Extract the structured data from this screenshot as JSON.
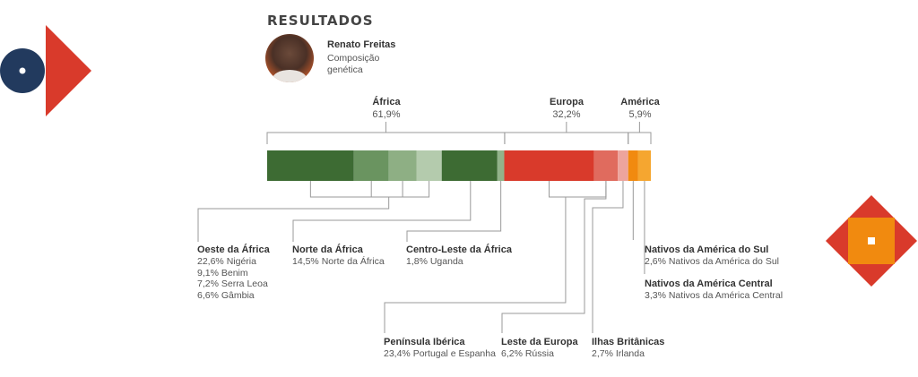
{
  "header": {
    "title": "RESULTADOS",
    "person_name": "Renato Freitas",
    "person_subtitle": "Composição genética"
  },
  "colors": {
    "africa": [
      "#3d6b33",
      "#6a9460",
      "#8eaf84",
      "#b4cbad",
      "#3d6b33",
      "#92b38a"
    ],
    "europe": [
      "#d93a2b",
      "#e06b5e",
      "#eda49d"
    ],
    "america": [
      "#f18a0f",
      "#f5a630"
    ],
    "decor_navy": "#223a5e",
    "decor_red": "#d93a2b",
    "decor_orange": "#f18a0f"
  },
  "chart_data": {
    "type": "bar",
    "orientation": "horizontal-stacked",
    "unit": "%",
    "groups": [
      {
        "name": "África",
        "pct_label": "61,9%",
        "value": 61.9
      },
      {
        "name": "Europa",
        "pct_label": "32,2%",
        "value": 32.2
      },
      {
        "name": "América",
        "pct_label": "5,9%",
        "value": 5.9
      }
    ],
    "segments": [
      {
        "group": "África",
        "country": "Nigéria",
        "value": 22.6
      },
      {
        "group": "África",
        "country": "Benim",
        "value": 9.1
      },
      {
        "group": "África",
        "country": "Serra Leoa",
        "value": 7.2
      },
      {
        "group": "África",
        "country": "Gâmbia",
        "value": 6.6
      },
      {
        "group": "África",
        "country": "Norte da África",
        "value": 14.5
      },
      {
        "group": "África",
        "country": "Uganda",
        "value": 1.8
      },
      {
        "group": "Europa",
        "country": "Portugal e Espanha",
        "value": 23.4
      },
      {
        "group": "Europa",
        "country": "Rússia",
        "value": 6.2
      },
      {
        "group": "Europa",
        "country": "Irlanda",
        "value": 2.7
      },
      {
        "group": "América",
        "country": "Nativos da América do Sul",
        "value": 2.6
      },
      {
        "group": "América",
        "country": "Nativos da América Central",
        "value": 3.3
      }
    ],
    "regions": [
      {
        "title": "Oeste da África",
        "items": [
          "22,6% Nigéria",
          "9,1% Benim",
          "7,2% Serra Leoa",
          "6,6% Gâmbia"
        ]
      },
      {
        "title": "Norte da África",
        "items": [
          "14,5% Norte da África"
        ]
      },
      {
        "title": "Centro-Leste da África",
        "items": [
          "1,8% Uganda"
        ]
      },
      {
        "title": "Península Ibérica",
        "items": [
          "23,4% Portugal e Espanha"
        ]
      },
      {
        "title": "Leste da Europa",
        "items": [
          "6,2% Rússia"
        ]
      },
      {
        "title": "Ilhas Britânicas",
        "items": [
          "2,7% Irlanda"
        ]
      },
      {
        "title": "Nativos da América do Sul",
        "items": [
          "2,6% Nativos da América do Sul"
        ]
      },
      {
        "title": "Nativos da América Central",
        "items": [
          "3,3% Nativos da América Central"
        ]
      }
    ]
  }
}
